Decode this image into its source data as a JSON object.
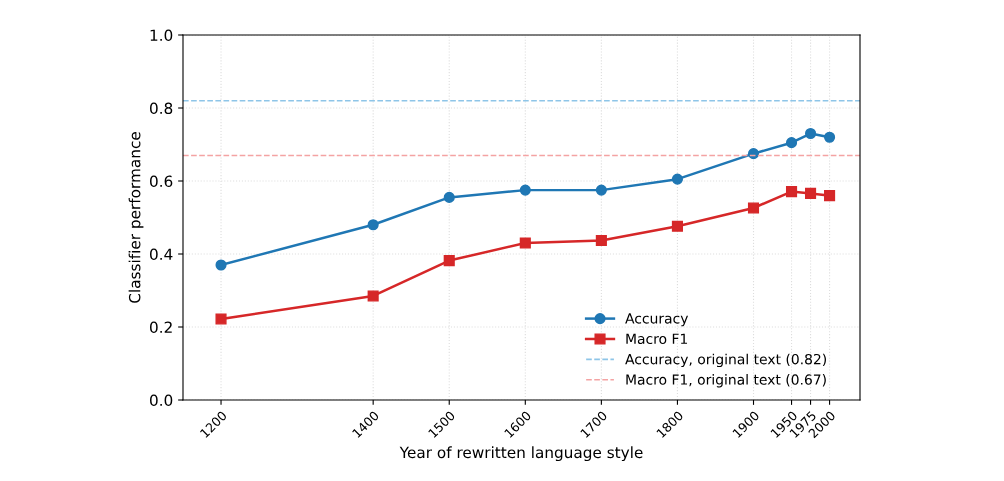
{
  "chart_data": {
    "type": "line",
    "xlabel": "Year of rewritten language style",
    "ylabel": "Classifier performance",
    "x": [
      1200,
      1400,
      1500,
      1600,
      1700,
      1800,
      1900,
      1950,
      1975,
      2000
    ],
    "series": [
      {
        "name": "Accuracy",
        "color": "#1f77b4",
        "marker": "circle",
        "values": [
          0.37,
          0.48,
          0.555,
          0.575,
          0.575,
          0.605,
          0.675,
          0.705,
          0.73,
          0.72
        ]
      },
      {
        "name": "Macro F1",
        "color": "#d62728",
        "marker": "square",
        "values": [
          0.222,
          0.285,
          0.382,
          0.43,
          0.437,
          0.476,
          0.526,
          0.571,
          0.566,
          0.56
        ]
      }
    ],
    "ref_lines": [
      {
        "axis": "y",
        "value": 0.82,
        "label": "Accuracy, original text (0.82)",
        "color": "#8ec5e8",
        "line_style": "dashed"
      },
      {
        "axis": "y",
        "value": 0.67,
        "label": "Macro F1, original text (0.67)",
        "color": "#f4a3a3",
        "line_style": "dashed"
      }
    ],
    "xlim": [
      1150,
      2040
    ],
    "xticks": [
      1200,
      1400,
      1500,
      1600,
      1700,
      1800,
      1900,
      1950,
      1975,
      2000
    ],
    "ylim": [
      0,
      1
    ],
    "yticks": [
      {
        "value": 0,
        "label": "0.0"
      },
      {
        "value": 0.2,
        "label": "0.2"
      },
      {
        "value": 0.4,
        "label": "0.4"
      },
      {
        "value": 0.6,
        "label": "0.6"
      },
      {
        "value": 0.8,
        "label": "0.8"
      },
      {
        "value": 1,
        "label": "1.0"
      }
    ],
    "grid": true,
    "legend": "bottom right",
    "line_style": "solid"
  }
}
